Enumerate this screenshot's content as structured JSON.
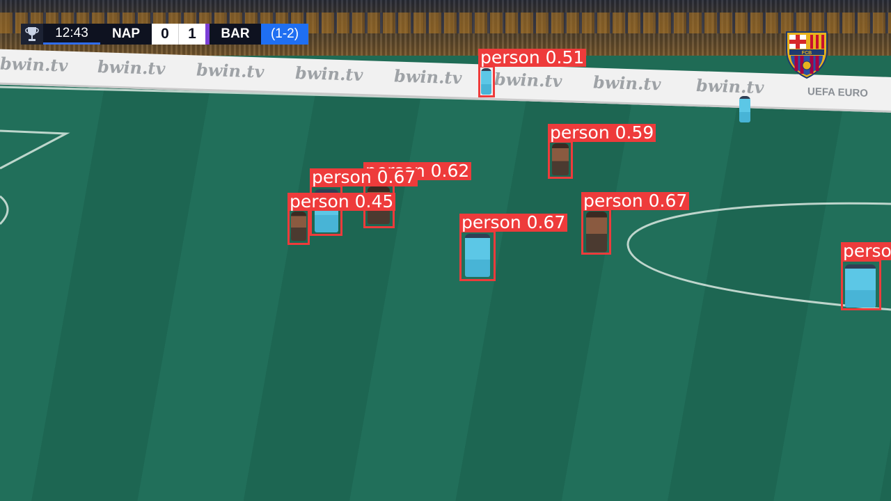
{
  "scoreboard": {
    "clock": "12:43",
    "home_team": "NAP",
    "home_score": "0",
    "away_score": "1",
    "away_team": "BAR",
    "aggregate": "(1-2)",
    "competition_logo": "uefa-europa-league-trophy-icon"
  },
  "team_crest": {
    "icon": "fc-barcelona-crest-icon",
    "text": "FCB"
  },
  "ad_board": {
    "items": [
      "bwin.tv",
      "bwin.tv",
      "bwin.tv",
      "bwin.tv",
      "bwin.tv",
      "bwin.tv",
      "bwin.tv",
      "bwin.tv"
    ],
    "trailing": "UEFA EURO"
  },
  "detections": [
    {
      "label": "person",
      "score": "0.51"
    },
    {
      "label": "person",
      "score": "0.59"
    },
    {
      "label": "person",
      "score": "0.67"
    },
    {
      "label": "person",
      "score": "0.62"
    },
    {
      "label": "person",
      "score": "0.45"
    },
    {
      "label": "person",
      "score": "0.67"
    },
    {
      "label": "person",
      "score": "0.67"
    },
    {
      "label": "person",
      "score": ""
    }
  ],
  "colors": {
    "box": "#ee3b3b",
    "label_text": "#ffffff",
    "pitch": "#216f5a",
    "home_blue": "#5cc7e6"
  }
}
